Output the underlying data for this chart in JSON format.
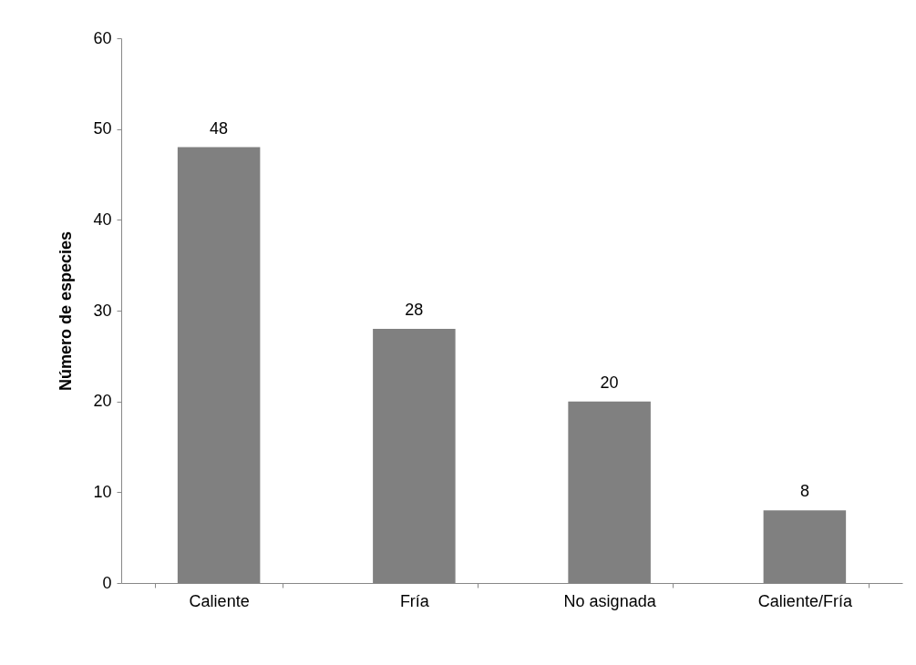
{
  "chart_data": {
    "type": "bar",
    "ylabel": "Número de especies",
    "categories": [
      "Caliente",
      "Fría",
      "No asignada",
      "Caliente/Fría"
    ],
    "values": [
      48,
      28,
      20,
      8
    ],
    "color": "#808080",
    "ylim": [
      0,
      60
    ],
    "yticks": [
      0,
      10,
      20,
      30,
      40,
      50,
      60
    ],
    "grid": false,
    "data_labels": true
  }
}
